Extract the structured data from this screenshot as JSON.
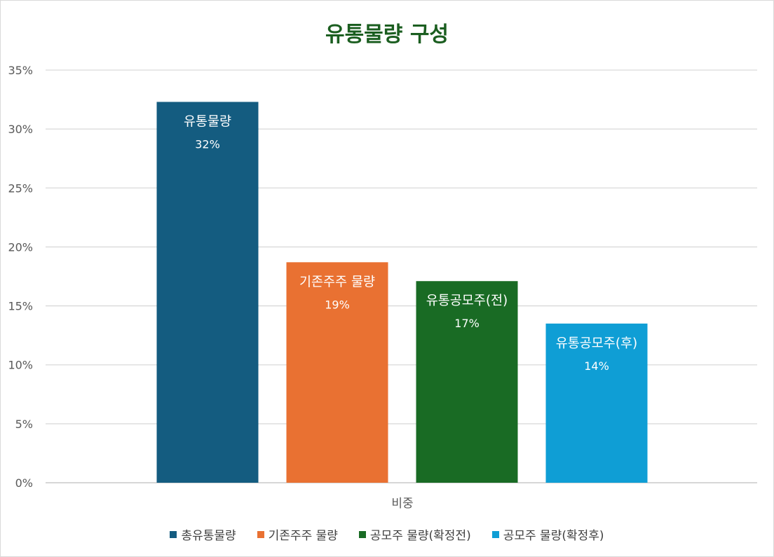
{
  "chart_data": {
    "type": "bar",
    "title": "유통물량 구성",
    "xlabel": "",
    "ylabel": "",
    "categories": [
      "비중"
    ],
    "ylim": [
      0,
      35
    ],
    "y_ticks": [
      "0%",
      "5%",
      "10%",
      "15%",
      "20%",
      "25%",
      "30%",
      "35%"
    ],
    "grid": true,
    "legend_position": "bottom",
    "series": [
      {
        "name": "총유통물량",
        "bar_label": "유통물량",
        "value": 32.3,
        "value_label": "32%",
        "color": "#145c80"
      },
      {
        "name": "기존주주 물량",
        "bar_label": "기존주주 물량",
        "value": 18.7,
        "value_label": "19%",
        "color": "#e97132"
      },
      {
        "name": "공모주 물량(확정전)",
        "bar_label": "유통공모주(전)",
        "value": 17.1,
        "value_label": "17%",
        "color": "#196b24"
      },
      {
        "name": "공모주 물량(확정후)",
        "bar_label": "유통공모주(후)",
        "value": 13.5,
        "value_label": "14%",
        "color": "#0f9ed5"
      }
    ]
  }
}
